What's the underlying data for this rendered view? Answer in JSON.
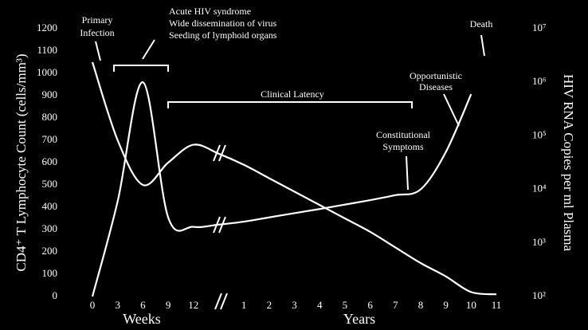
{
  "chart_data": {
    "type": "line",
    "y_axis_label": "CD4⁺ T Lymphocyte Count (cells/mm³)",
    "y2_axis_label": "HIV RNA Copies per ml Plasma",
    "x_unit_labels": [
      "Weeks",
      "Years"
    ],
    "annotations": [
      {
        "lines": [
          "Primary",
          "Infection"
        ]
      },
      {
        "lines": [
          "Acute HIV syndrome",
          "Wide dissemination of virus",
          "Seeding of lymphoid organs"
        ]
      },
      {
        "lines": [
          "Clinical Latency"
        ]
      },
      {
        "lines": [
          "Constitutional",
          "Symptoms"
        ]
      },
      {
        "lines": [
          "Opportunistic",
          "Diseases"
        ]
      },
      {
        "lines": [
          "Death"
        ]
      }
    ],
    "categories": [
      "0",
      "3",
      "6",
      "9",
      "12",
      null,
      "1",
      "2",
      "3",
      "4",
      "5",
      "6",
      "7",
      "8",
      "9",
      "10",
      "11"
    ],
    "series": [
      {
        "color": "#ffffff",
        "values": [
          1050,
          700,
          500,
          600,
          680,
          640,
          590,
          530,
          470,
          410,
          350,
          290,
          220,
          150,
          90,
          20,
          10
        ]
      },
      {
        "color": "#ffffff",
        "axis": "y2",
        "values": [
          100,
          6000,
          1000000,
          3000,
          2000,
          2200,
          2500,
          3000,
          3600,
          4300,
          5200,
          6300,
          7800,
          10000,
          50000,
          600000,
          null
        ]
      }
    ],
    "ylim": [
      0,
      1200
    ],
    "yticks": [
      0,
      100,
      200,
      300,
      400,
      500,
      600,
      700,
      800,
      900,
      1000,
      1100,
      1200
    ],
    "y2lim": [
      100,
      10000000
    ],
    "y2log": true,
    "y2ticks": [
      {
        "value": 100,
        "label": "10²"
      },
      {
        "value": 1000,
        "label": "10³"
      },
      {
        "value": 10000,
        "label": "10⁴"
      },
      {
        "value": 100000,
        "label": "10⁵"
      },
      {
        "value": 1000000,
        "label": "10⁶"
      },
      {
        "value": 10000000,
        "label": "10⁷"
      }
    ]
  }
}
